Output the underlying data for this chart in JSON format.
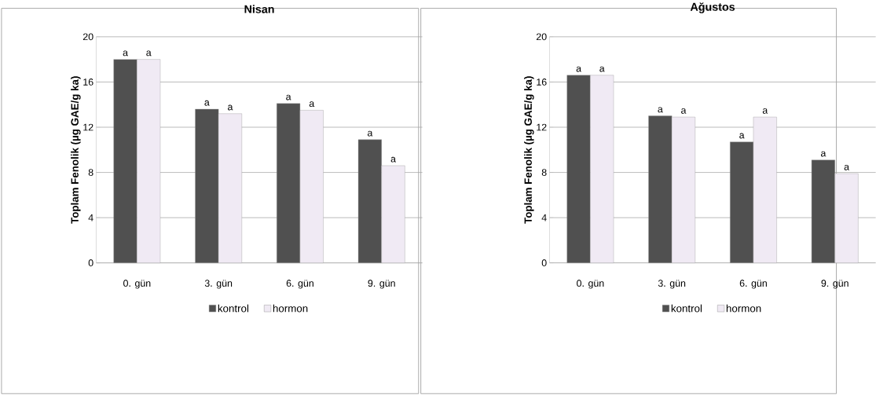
{
  "chart_data": [
    {
      "type": "bar",
      "title": "Nisan",
      "ylabel": "Toplam Fenolik (µg GAE/g ka)",
      "categories": [
        "0. gün",
        "3. gün",
        "6. gün",
        "9. gün"
      ],
      "series": [
        {
          "name": "kontrol",
          "color": "#505050",
          "values": [
            18.0,
            13.6,
            14.1,
            10.9
          ],
          "value_labels": [
            "a",
            "a",
            "a",
            "a"
          ]
        },
        {
          "name": "hormon",
          "color": "#f0eaf4",
          "values": [
            18.0,
            13.2,
            13.5,
            8.6
          ],
          "value_labels": [
            "a",
            "a",
            "a",
            "a"
          ]
        }
      ],
      "ylim": [
        0,
        20
      ],
      "yticks": [
        0,
        4,
        8,
        12,
        16,
        20
      ],
      "grid": "y",
      "legend": "bottom"
    },
    {
      "type": "bar",
      "title": "Ağustos",
      "ylabel": "Toplam Fenolik (µg GAE/g ka)",
      "categories": [
        "0. gün",
        "3. gün",
        "6. gün",
        "9. gün"
      ],
      "series": [
        {
          "name": "kontrol",
          "color": "#505050",
          "values": [
            16.6,
            13.0,
            10.7,
            9.1
          ],
          "value_labels": [
            "a",
            "a",
            "a",
            "a"
          ]
        },
        {
          "name": "hormon",
          "color": "#f0eaf4",
          "values": [
            16.6,
            12.9,
            12.9,
            7.9
          ],
          "value_labels": [
            "a",
            "a",
            "a",
            "a"
          ]
        }
      ],
      "ylim": [
        0,
        20
      ],
      "yticks": [
        0,
        4,
        8,
        12,
        16,
        20
      ],
      "grid": "y",
      "legend": "bottom"
    }
  ]
}
